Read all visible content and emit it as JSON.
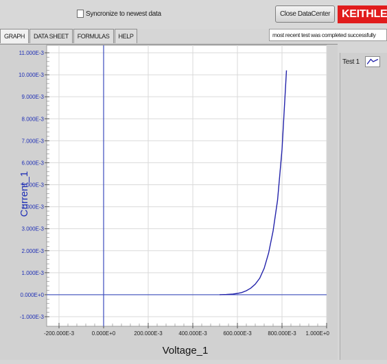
{
  "header": {
    "sync_label": "Syncronize to newest data",
    "close_button": "Close DataCenter",
    "logo_text": "KEITHLEY"
  },
  "tabs": [
    "GRAPH",
    "DATA SHEET",
    "FORMULAS",
    "HELP"
  ],
  "active_tab": "GRAPH",
  "status_message": "most recent test was completed successfully",
  "legend": {
    "label": "Test 1"
  },
  "colors": {
    "series": "#2222aa",
    "axis_label": "#1f2fb5",
    "logo_bg": "#e11c1c",
    "plot_bg": "#ffffff"
  },
  "chart_data": {
    "type": "line",
    "xlabel": "Voltage_1",
    "ylabel": "Current_1",
    "xlim": [
      -0.2,
      1.0
    ],
    "ylim": [
      -0.001,
      0.011
    ],
    "x_ticks": [
      "-200.000E-3",
      "0.000E+0",
      "200.000E-3",
      "400.000E-3",
      "600.000E-3",
      "800.000E-3",
      "1.000E+0"
    ],
    "y_ticks": [
      "-1.000E-3",
      "0.000E+0",
      "1.000E-3",
      "2.000E-3",
      "3.000E-3",
      "4.000E-3",
      "5.000E-3",
      "6.000E-3",
      "7.000E-3",
      "8.000E-3",
      "9.000E-3",
      "10.000E-3",
      "11.000E-3"
    ],
    "grid": true,
    "series": [
      {
        "name": "Test 1",
        "x": [
          0.52,
          0.55,
          0.58,
          0.6,
          0.62,
          0.64,
          0.66,
          0.68,
          0.7,
          0.72,
          0.74,
          0.76,
          0.78,
          0.8,
          0.82
        ],
        "y": [
          0.0,
          1e-05,
          3e-05,
          6e-05,
          0.0001,
          0.00018,
          0.0003,
          0.00048,
          0.00075,
          0.0012,
          0.0019,
          0.0029,
          0.0043,
          0.0066,
          0.0102
        ]
      }
    ]
  }
}
